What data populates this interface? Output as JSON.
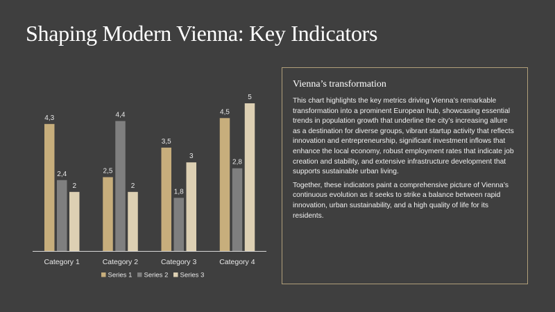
{
  "slide": {
    "title": "Shaping Modern Vienna: Key Indicators"
  },
  "panel": {
    "heading": "Vienna’s transformation",
    "paragraphs": [
      "This chart highlights the key metrics driving Vienna’s remarkable transformation into a prominent European hub, showcasing essential trends in population growth that underline the city’s increasing allure as a destination for diverse groups, vibrant startup activity that reflects innovation and entrepreneurship, significant investment inflows that enhance the local economy, robust employment rates that indicate job creation and stability, and extensive infrastructure development that supports sustainable urban living.",
      "Together, these indicators paint a comprehensive picture of Vienna’s continuous evolution as it seeks to strike a balance between rapid innovation, urban sustainability, and a high quality of life for its residents."
    ],
    "border_color": "#b1a07a"
  },
  "chart_data": {
    "type": "bar",
    "categories": [
      "Category 1",
      "Category 2",
      "Category 3",
      "Category 4"
    ],
    "series": [
      {
        "name": "Series 1",
        "values": [
          4.3,
          2.5,
          3.5,
          4.5
        ],
        "labels": [
          "4,3",
          "2,5",
          "3,5",
          "4,5"
        ],
        "color": "#c7ae7c"
      },
      {
        "name": "Series 2",
        "values": [
          2.4,
          4.4,
          1.8,
          2.8
        ],
        "labels": [
          "2,4",
          "4,4",
          "1,8",
          "2,8"
        ],
        "color": "#7f7f7f"
      },
      {
        "name": "Series 3",
        "values": [
          2,
          2,
          3,
          5
        ],
        "labels": [
          "2",
          "2",
          "3",
          "5"
        ],
        "color": "#ddd0b3"
      }
    ],
    "ylim": [
      0,
      5
    ],
    "grid": false,
    "legend_position": "bottom"
  }
}
